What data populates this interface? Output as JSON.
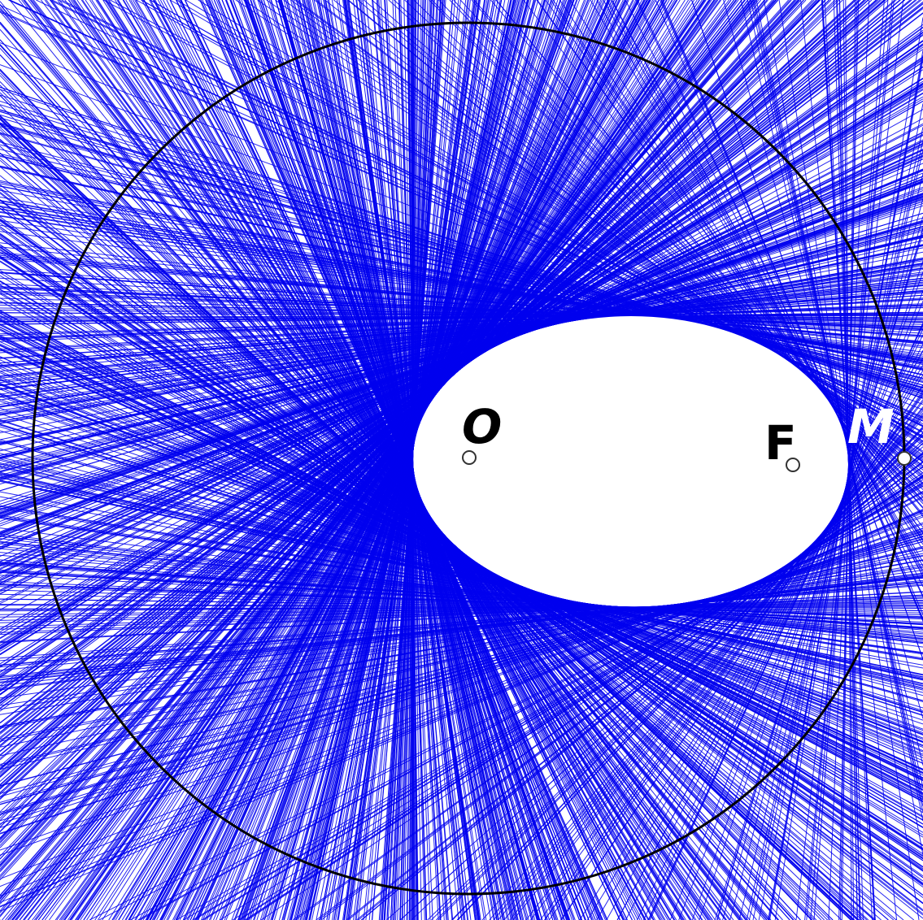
{
  "colors": {
    "line_color": "#0000ee",
    "circle_color": "#000000",
    "background": "#ffffff",
    "label_dark": "#000000",
    "label_light": "#ffffff"
  },
  "points": {
    "O": {
      "label": "O"
    },
    "F": {
      "label": "F"
    },
    "M": {
      "label": "M"
    }
  }
}
